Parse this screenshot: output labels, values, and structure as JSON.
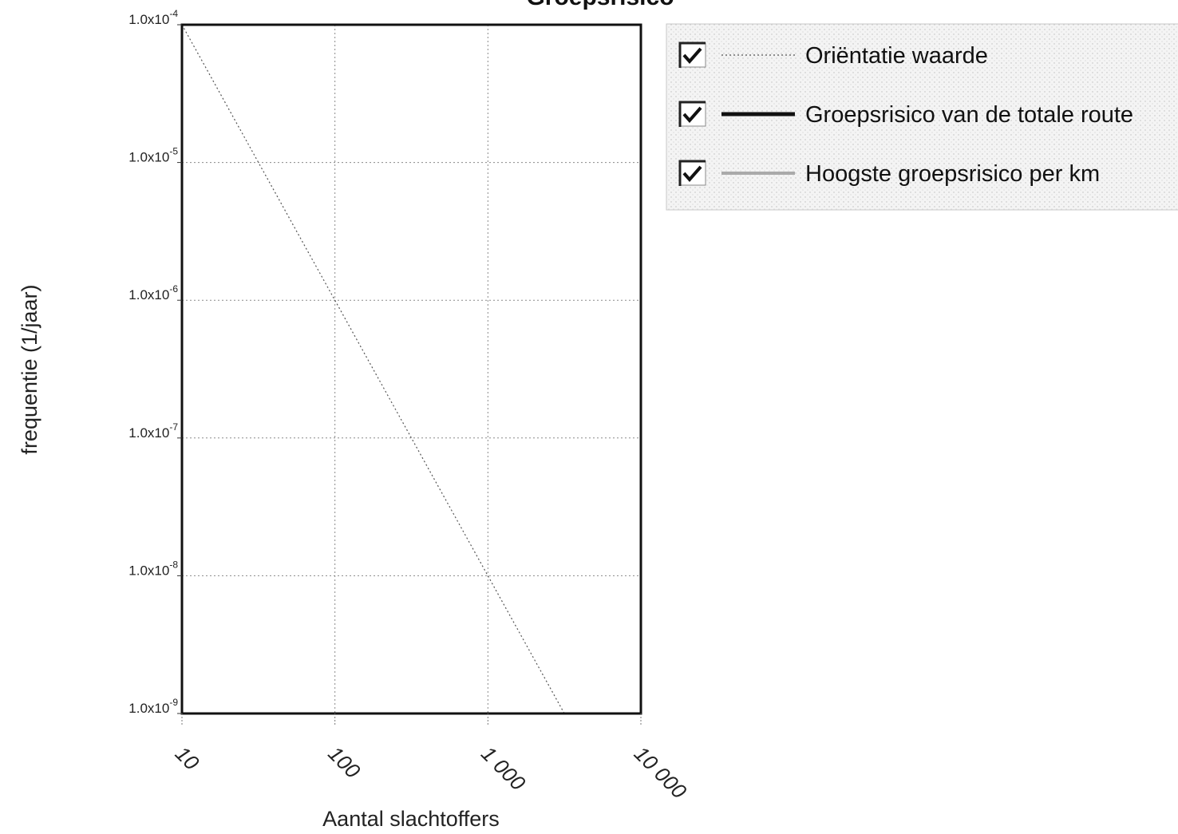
{
  "chart_data": {
    "type": "line",
    "title": "Groepsrisico",
    "xlabel": "Aantal slachtoffers",
    "ylabel": "frequentie (1/jaar)",
    "x_scale": "log",
    "y_scale": "log",
    "xlim": [
      10,
      10000
    ],
    "ylim": [
      1e-09,
      0.0001
    ],
    "grid": true,
    "legend_position": "right",
    "x_ticks": [
      {
        "value": 10,
        "label": "10"
      },
      {
        "value": 100,
        "label": "100"
      },
      {
        "value": 1000,
        "label": "1 000"
      },
      {
        "value": 10000,
        "label": "10 000"
      }
    ],
    "y_ticks": [
      {
        "value": 0.0001,
        "mantissa": "1.0x10",
        "exponent": "-4"
      },
      {
        "value": 1e-05,
        "mantissa": "1.0x10",
        "exponent": "-5"
      },
      {
        "value": 1e-06,
        "mantissa": "1.0x10",
        "exponent": "-6"
      },
      {
        "value": 1e-07,
        "mantissa": "1.0x10",
        "exponent": "-7"
      },
      {
        "value": 1e-08,
        "mantissa": "1.0x10",
        "exponent": "-8"
      },
      {
        "value": 1e-09,
        "mantissa": "1.0x10",
        "exponent": "-9"
      }
    ],
    "series": [
      {
        "name": "Oriëntatie waarde",
        "style": "dotted",
        "color": "#555555",
        "checked": true,
        "points": [
          [
            10,
            0.0001
          ],
          [
            3160,
            1e-09
          ]
        ]
      },
      {
        "name": "Groepsrisico van de totale route",
        "style": "solid",
        "color": "#111111",
        "checked": true,
        "points": []
      },
      {
        "name": "Hoogste groepsrisico per km",
        "style": "solid",
        "color": "#aaaaaa",
        "checked": true,
        "points": []
      }
    ]
  }
}
